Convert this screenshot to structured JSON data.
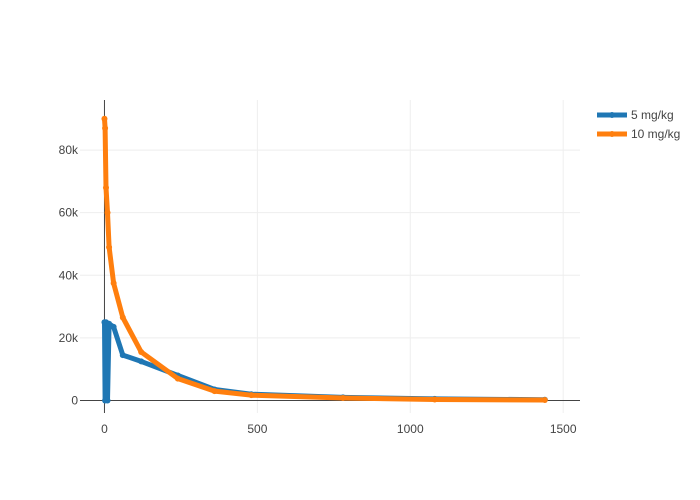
{
  "chart_data": {
    "type": "line",
    "title": "",
    "xlabel": "",
    "ylabel": "",
    "xlim": [
      -80,
      1555
    ],
    "ylim": [
      -4000,
      96000
    ],
    "x_ticks": [
      0,
      500,
      1000,
      1500
    ],
    "x_tick_labels": [
      "0",
      "500",
      "1000",
      "1500"
    ],
    "y_ticks": [
      0,
      20000,
      40000,
      60000,
      80000
    ],
    "y_tick_labels": [
      "0",
      "20k",
      "40k",
      "60k",
      "80k"
    ],
    "grid": true,
    "legend_position": "top-right",
    "series": [
      {
        "name": "5 mg/kg",
        "color": "#1f77b4",
        "x": [
          0,
          2,
          5,
          10,
          15,
          30,
          60,
          120,
          240,
          360,
          480,
          780,
          1080,
          1440
        ],
        "y": [
          25000,
          0,
          25000,
          0,
          24500,
          23500,
          14500,
          12500,
          8000,
          3500,
          2000,
          1000,
          500,
          250
        ]
      },
      {
        "name": "10 mg/kg",
        "color": "#ff7f0e",
        "x": [
          0,
          2,
          5,
          10,
          15,
          30,
          60,
          120,
          240,
          360,
          480,
          780,
          1080,
          1440
        ],
        "y": [
          90000,
          87000,
          68000,
          60000,
          49000,
          37500,
          26500,
          15500,
          7000,
          3000,
          1700,
          800,
          300,
          150
        ]
      }
    ]
  }
}
